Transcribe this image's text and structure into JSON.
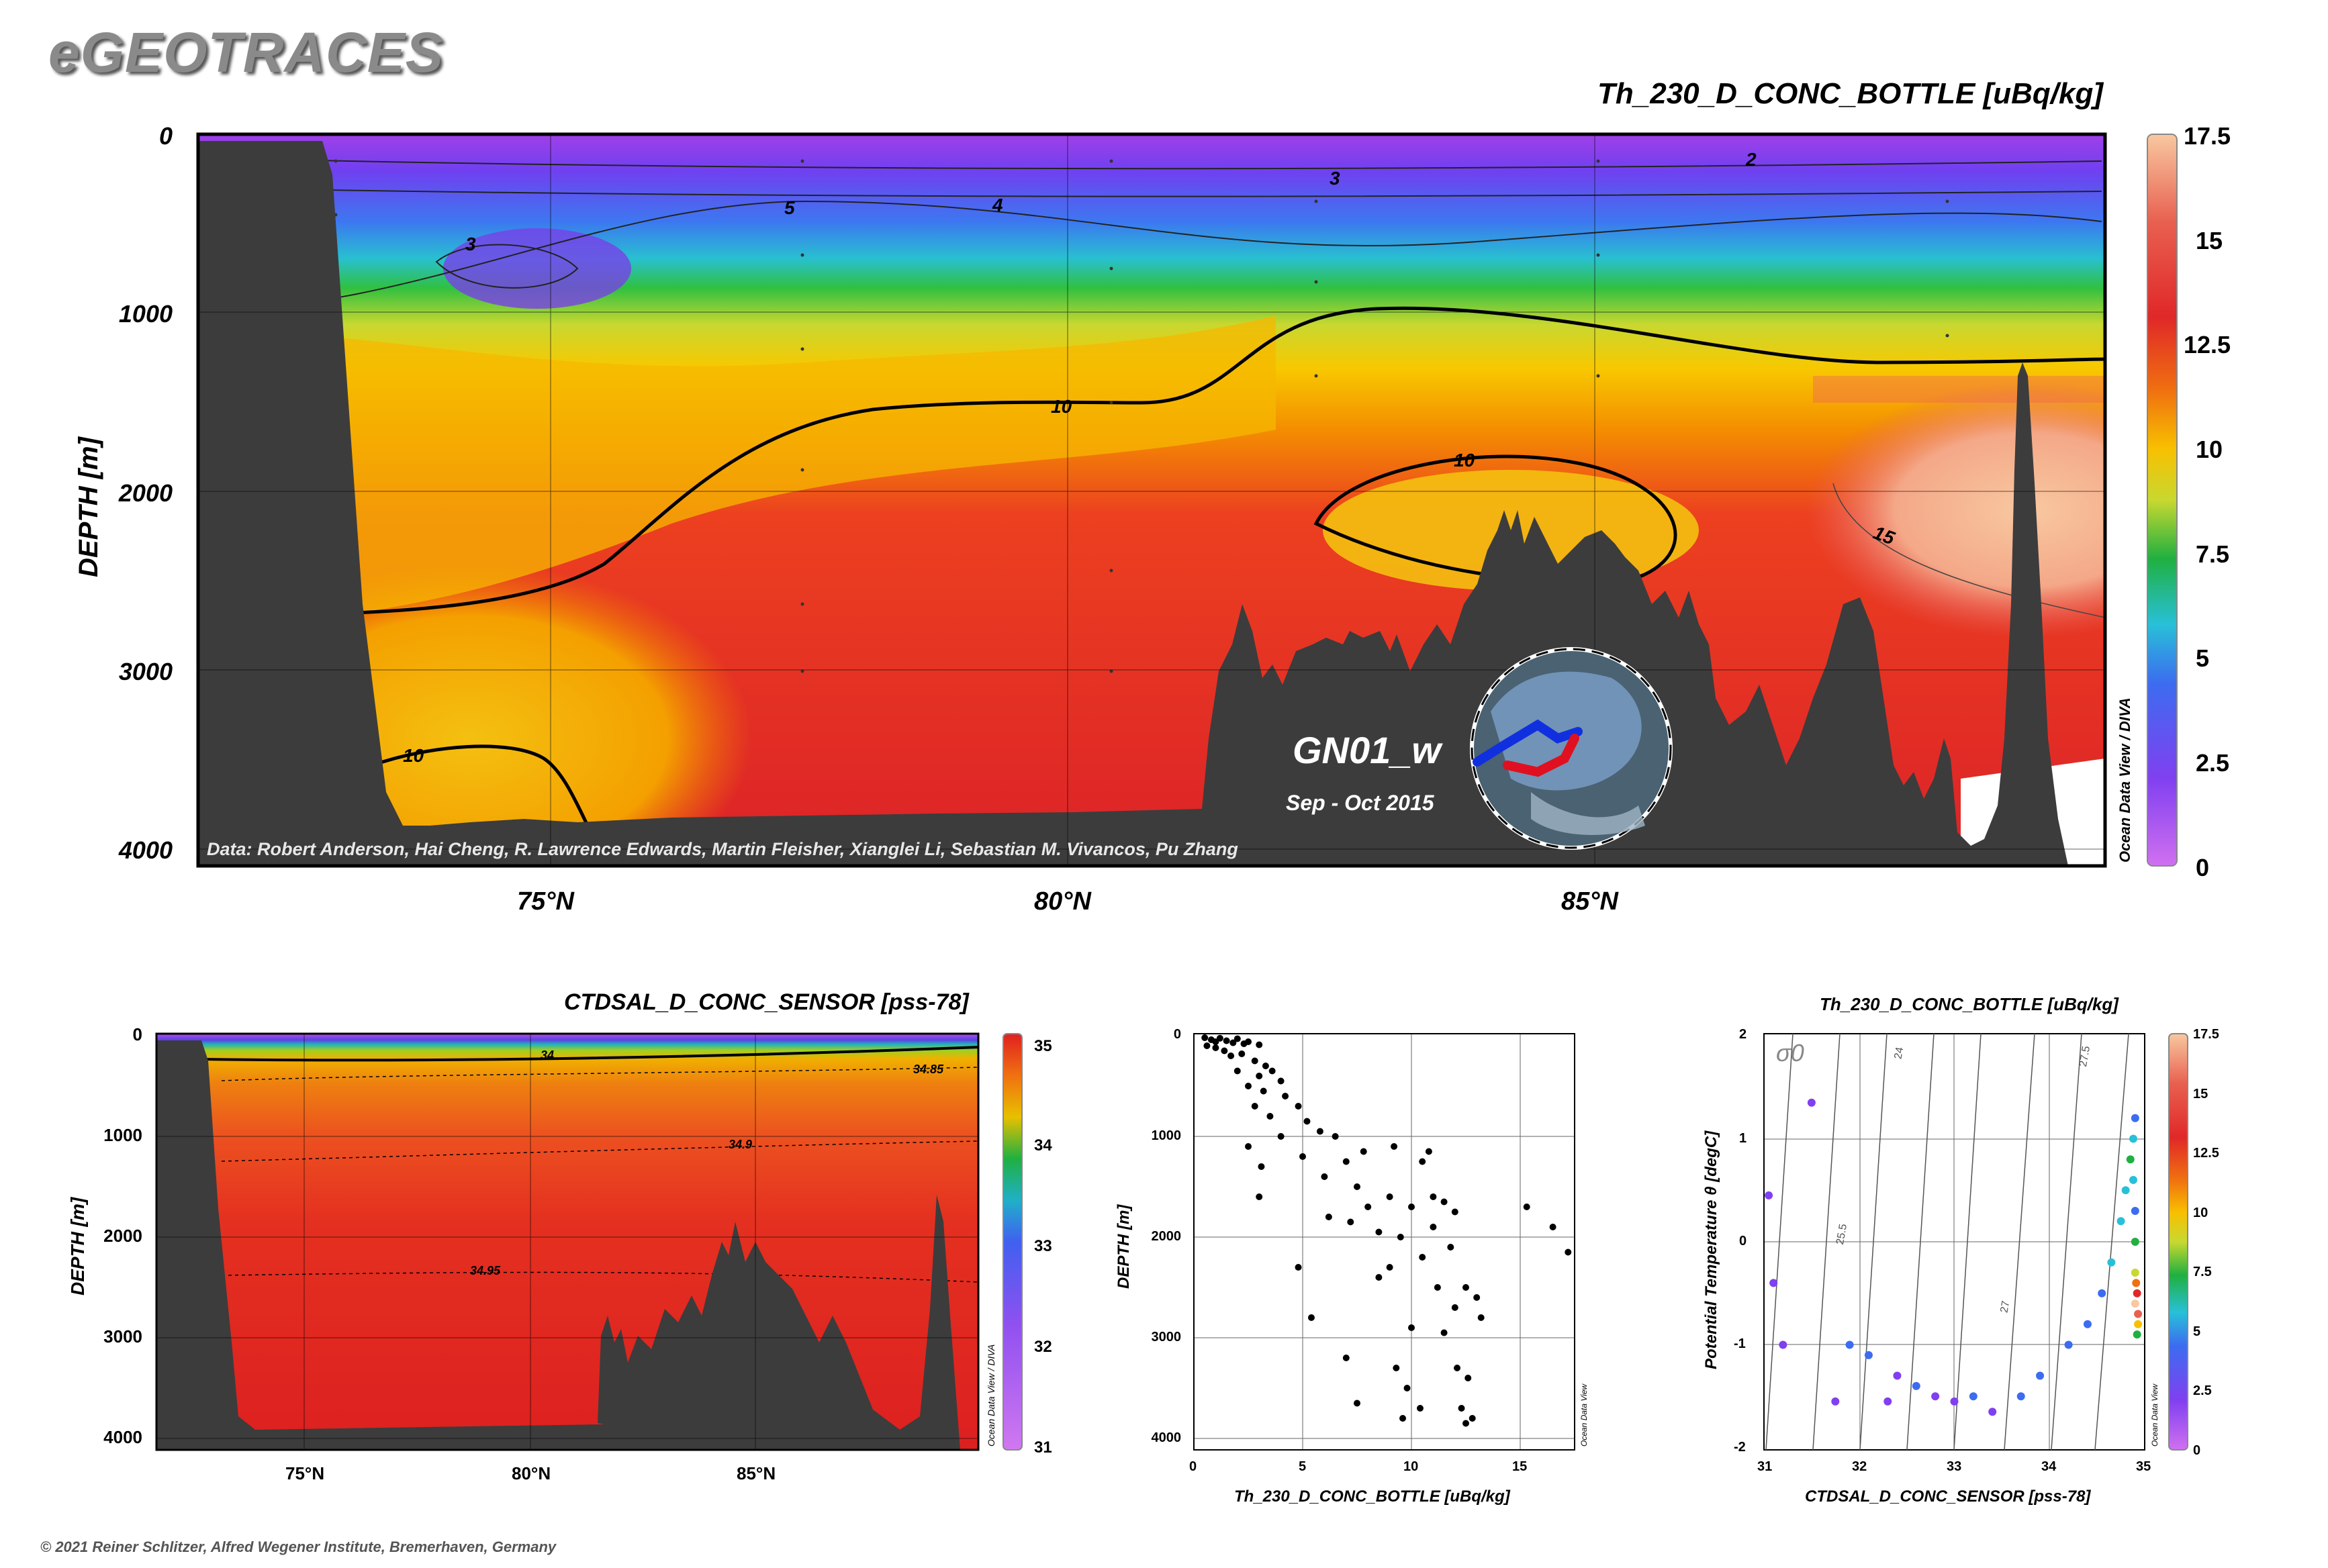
{
  "brand": "eGEOTRACES",
  "copyright": "© 2021 Reiner Schlitzer, Alfred Wegener Institute, Bremerhaven, Germany",
  "section": {
    "title": "Th_230_D_CONC_BOTTLE [uBq/kg]",
    "ylabel": "DEPTH [m]",
    "xticks": [
      "75°N",
      "80°N",
      "85°N"
    ],
    "yticks": [
      "0",
      "1000",
      "2000",
      "3000",
      "4000"
    ],
    "cbar_ticks": [
      "17.5",
      "15",
      "12.5",
      "10",
      "7.5",
      "5",
      "2.5",
      "0"
    ],
    "cbar_side": "Ocean Data View / DIVA",
    "credits": "Data: Robert Anderson, Hai Cheng, R. Lawrence Edwards, Martin Fleisher, Xianglei Li, Sebastian M. Vivancos, Pu Zhang",
    "cruise": "GN01_w",
    "dates": "Sep - Oct 2015",
    "contour_labels": [
      "2",
      "3",
      "3",
      "4",
      "5",
      "10",
      "10",
      "10",
      "15"
    ]
  },
  "salinity": {
    "title": "CTDSAL_D_CONC_SENSOR [pss-78]",
    "ylabel": "DEPTH [m]",
    "xticks": [
      "75°N",
      "80°N",
      "85°N"
    ],
    "yticks": [
      "0",
      "1000",
      "2000",
      "3000",
      "4000"
    ],
    "cbar_ticks": [
      "35",
      "34",
      "33",
      "32",
      "31"
    ],
    "cbar_side": "Ocean Data View / DIVA",
    "contour_labels": [
      "34",
      "34.85",
      "34.9",
      "34.95"
    ]
  },
  "scatter": {
    "xlabel": "Th_230_D_CONC_BOTTLE [uBq/kg]",
    "ylabel": "DEPTH [m]",
    "xticks": [
      "0",
      "5",
      "10",
      "15"
    ],
    "yticks": [
      "0",
      "1000",
      "2000",
      "3000",
      "4000"
    ],
    "side": "Ocean Data View"
  },
  "ts": {
    "title": "Th_230_D_CONC_BOTTLE [uBq/kg]",
    "xlabel": "CTDSAL_D_CONC_SENSOR [pss-78]",
    "ylabel": "Potential Temperature θ [degC]",
    "xticks": [
      "31",
      "32",
      "33",
      "34",
      "35"
    ],
    "yticks": [
      "2",
      "1",
      "0",
      "-1",
      "-2"
    ],
    "cbar_ticks": [
      "17.5",
      "15",
      "12.5",
      "10",
      "7.5",
      "5",
      "2.5",
      "0"
    ],
    "side": "Ocean Data View",
    "sigma_label": "σ0",
    "isopycnal_labels": [
      "24",
      "25.5",
      "27",
      "27.5"
    ]
  },
  "chart_data": [
    {
      "type": "scatter",
      "xlabel": "Th_230_D_CONC_BOTTLE [uBq/kg]",
      "ylabel": "DEPTH [m]",
      "xlim": [
        0,
        17.5
      ],
      "ylim": [
        4100,
        0
      ],
      "points": [
        [
          0.5,
          20
        ],
        [
          0.8,
          40
        ],
        [
          1.0,
          60
        ],
        [
          1.2,
          25
        ],
        [
          1.5,
          50
        ],
        [
          1.8,
          70
        ],
        [
          2.0,
          30
        ],
        [
          2.3,
          80
        ],
        [
          0.6,
          100
        ],
        [
          1.0,
          120
        ],
        [
          1.4,
          150
        ],
        [
          2.5,
          60
        ],
        [
          3.0,
          90
        ],
        [
          1.7,
          200
        ],
        [
          2.2,
          180
        ],
        [
          2.8,
          250
        ],
        [
          3.3,
          300
        ],
        [
          2.0,
          350
        ],
        [
          3.0,
          400
        ],
        [
          2.5,
          500
        ],
        [
          3.6,
          350
        ],
        [
          4.0,
          450
        ],
        [
          3.2,
          550
        ],
        [
          4.2,
          600
        ],
        [
          2.8,
          700
        ],
        [
          3.5,
          800
        ],
        [
          4.8,
          700
        ],
        [
          5.2,
          850
        ],
        [
          4.0,
          1000
        ],
        [
          5.8,
          950
        ],
        [
          6.5,
          1000
        ],
        [
          2.5,
          1100
        ],
        [
          3.1,
          1300
        ],
        [
          5.0,
          1200
        ],
        [
          7.0,
          1250
        ],
        [
          7.8,
          1150
        ],
        [
          9.2,
          1100
        ],
        [
          10.5,
          1250
        ],
        [
          10.8,
          1150
        ],
        [
          6.0,
          1400
        ],
        [
          7.5,
          1500
        ],
        [
          8.0,
          1700
        ],
        [
          3.0,
          1600
        ],
        [
          9.0,
          1600
        ],
        [
          10.0,
          1700
        ],
        [
          11.0,
          1600
        ],
        [
          11.5,
          1650
        ],
        [
          12.0,
          1750
        ],
        [
          15.3,
          1700
        ],
        [
          16.5,
          1900
        ],
        [
          6.2,
          1800
        ],
        [
          7.2,
          1850
        ],
        [
          8.5,
          1950
        ],
        [
          9.5,
          2000
        ],
        [
          11.0,
          1900
        ],
        [
          11.8,
          2100
        ],
        [
          10.5,
          2200
        ],
        [
          9.0,
          2300
        ],
        [
          8.5,
          2400
        ],
        [
          11.2,
          2500
        ],
        [
          12.5,
          2500
        ],
        [
          13.0,
          2600
        ],
        [
          12.0,
          2700
        ],
        [
          13.2,
          2800
        ],
        [
          10.0,
          2900
        ],
        [
          11.5,
          2950
        ],
        [
          4.8,
          2300
        ],
        [
          5.4,
          2800
        ],
        [
          7.0,
          3200
        ],
        [
          17.2,
          2150
        ],
        [
          9.3,
          3300
        ],
        [
          9.8,
          3500
        ],
        [
          10.4,
          3700
        ],
        [
          12.1,
          3300
        ],
        [
          12.6,
          3400
        ],
        [
          12.3,
          3700
        ],
        [
          12.8,
          3800
        ],
        [
          7.5,
          3650
        ],
        [
          9.6,
          3800
        ],
        [
          12.5,
          3850
        ]
      ]
    },
    {
      "type": "scatter",
      "title": "Th_230_D_CONC_BOTTLE [uBq/kg]",
      "xlabel": "CTDSAL_D_CONC_SENSOR [pss-78]",
      "ylabel": "Potential Temperature θ [degC]",
      "xlim": [
        31,
        35
      ],
      "ylim": [
        -2,
        2
      ],
      "color_scale": {
        "var": "Th_230_D_CONC_BOTTLE [uBq/kg]",
        "range": [
          0,
          17.5
        ]
      },
      "points": [
        [
          31.05,
          0.45,
          1.0
        ],
        [
          31.1,
          -0.4,
          1.5
        ],
        [
          31.2,
          -1.0,
          1.8
        ],
        [
          31.5,
          1.35,
          1.2
        ],
        [
          31.75,
          -1.55,
          2.0
        ],
        [
          31.9,
          -1.0,
          2.5
        ],
        [
          32.1,
          -1.1,
          2.2
        ],
        [
          32.3,
          -1.55,
          1.5
        ],
        [
          32.4,
          -1.3,
          2.0
        ],
        [
          32.6,
          -1.4,
          2.8
        ],
        [
          32.8,
          -1.5,
          2.0
        ],
        [
          33.0,
          -1.55,
          1.8
        ],
        [
          33.2,
          -1.5,
          2.5
        ],
        [
          33.4,
          -1.65,
          2.0
        ],
        [
          33.7,
          -1.5,
          3.0
        ],
        [
          33.9,
          -1.3,
          2.8
        ],
        [
          34.2,
          -1.0,
          3.2
        ],
        [
          34.4,
          -0.8,
          3.5
        ],
        [
          34.55,
          -0.5,
          4.0
        ],
        [
          34.65,
          -0.2,
          4.5
        ],
        [
          34.75,
          0.2,
          5.0
        ],
        [
          34.8,
          0.5,
          5.5
        ],
        [
          34.85,
          0.8,
          6.0
        ],
        [
          34.88,
          1.0,
          5.0
        ],
        [
          34.9,
          1.2,
          4.0
        ],
        [
          34.9,
          0.0,
          7.0
        ],
        [
          34.9,
          -0.3,
          8.5
        ],
        [
          34.92,
          -0.5,
          12.0
        ],
        [
          34.93,
          -0.7,
          14.0
        ],
        [
          34.93,
          -0.8,
          9.0
        ],
        [
          34.92,
          -0.9,
          6.5
        ],
        [
          34.9,
          -0.6,
          16.0
        ],
        [
          34.91,
          -0.4,
          11.0
        ],
        [
          34.9,
          0.3,
          3.5
        ],
        [
          34.88,
          0.6,
          4.8
        ]
      ]
    }
  ]
}
